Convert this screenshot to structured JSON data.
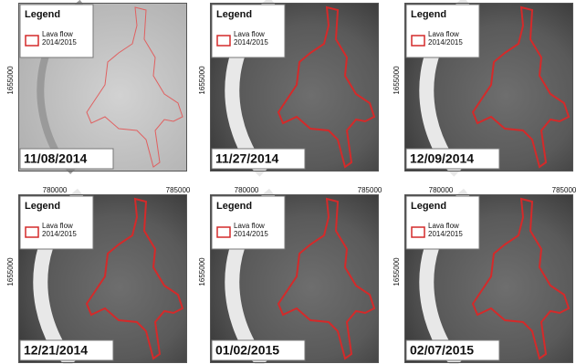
{
  "y_axis_label": "1655000",
  "x_axis_labels": [
    "780000",
    "785000"
  ],
  "legend": {
    "title": "Legend",
    "item_lines": [
      "Lava flow",
      "2014/2015"
    ]
  },
  "panels": [
    {
      "date": "11/08/2014"
    },
    {
      "date": "11/27/2014"
    },
    {
      "date": "12/09/2014"
    },
    {
      "date": "12/21/2014"
    },
    {
      "date": "01/02/2015"
    },
    {
      "date": "02/07/2015"
    }
  ]
}
